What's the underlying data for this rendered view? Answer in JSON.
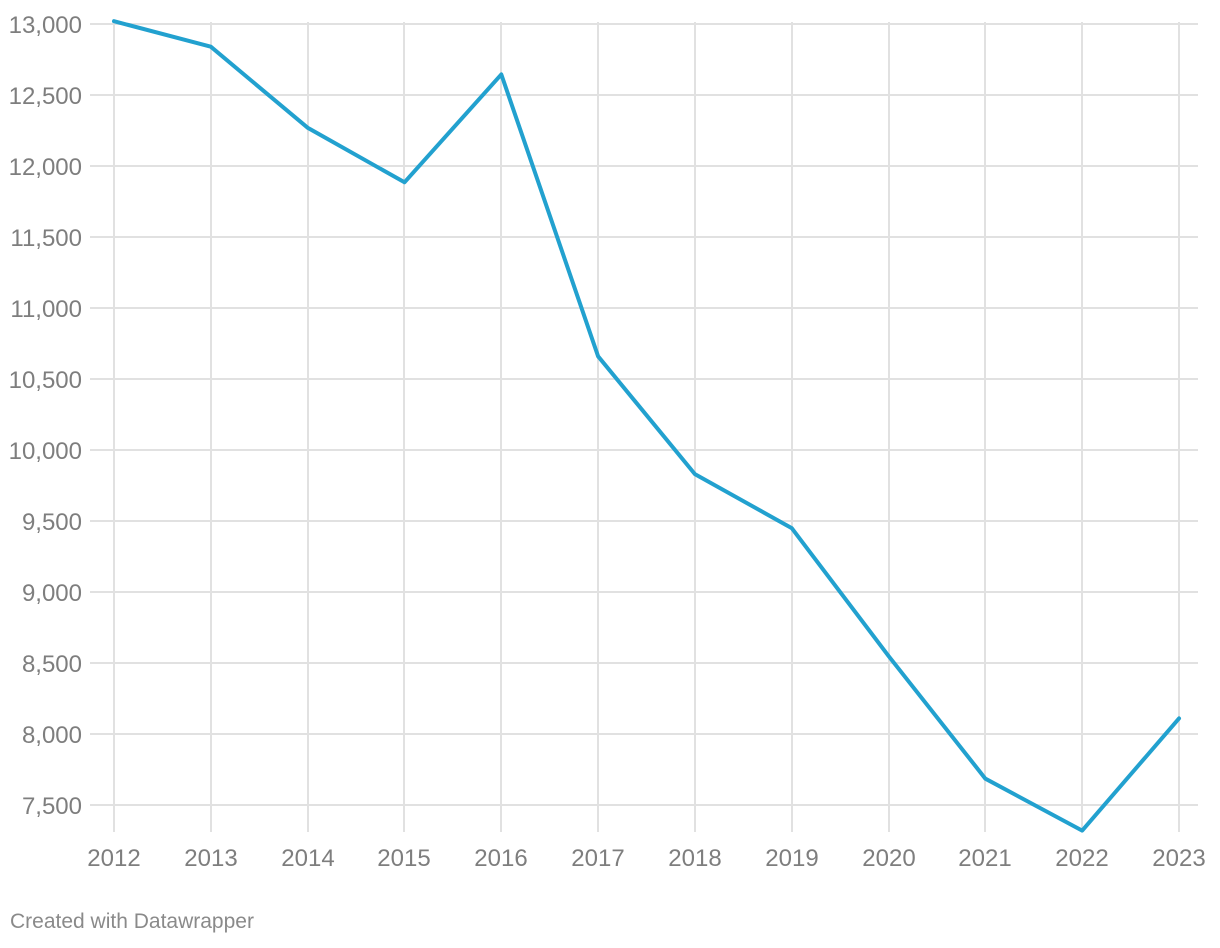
{
  "chart_data": {
    "type": "line",
    "title": "",
    "xlabel": "",
    "ylabel": "",
    "x": [
      "2012",
      "2013",
      "2014",
      "2015",
      "2016",
      "2017",
      "2018",
      "2019",
      "2020",
      "2021",
      "2022",
      "2023"
    ],
    "series": [
      {
        "values": [
          13020,
          12840,
          12270,
          11885,
          12645,
          10660,
          9830,
          9450,
          8550,
          7685,
          7320,
          8110
        ]
      }
    ],
    "y_ticks": [
      7500,
      8000,
      8500,
      9000,
      9500,
      10000,
      10500,
      11000,
      11500,
      12000,
      12500,
      13000
    ],
    "y_tick_labels": [
      "7,500",
      "8,000",
      "8,500",
      "9,000",
      "9,500",
      "10,000",
      "10,500",
      "11,000",
      "11,500",
      "12,000",
      "12,500",
      "13,000"
    ],
    "ylim": [
      7300,
      13000
    ],
    "grid": true,
    "legend": "none",
    "colors": {
      "line": "#22a1cf",
      "grid": "#e1e1e1",
      "tick_text": "#7e7e7e"
    }
  },
  "footer": {
    "credit": "Created with Datawrapper"
  }
}
